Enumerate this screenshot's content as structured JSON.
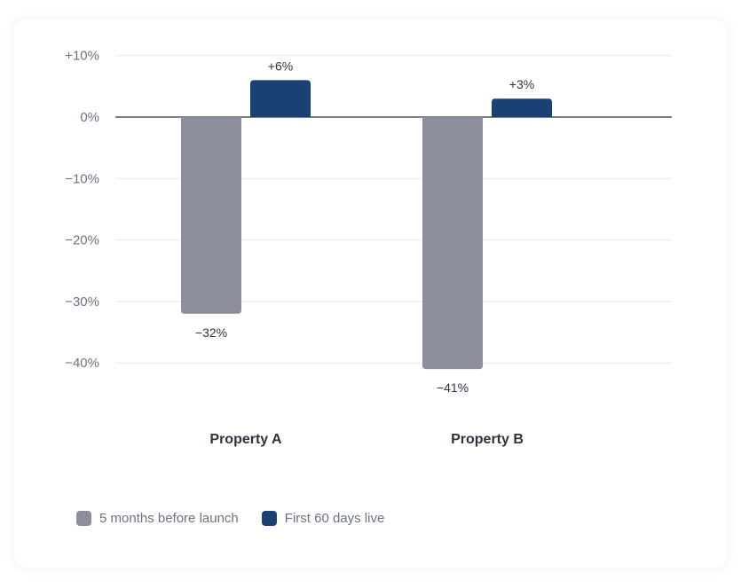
{
  "chart_data": {
    "type": "bar",
    "categories": [
      "Property A",
      "Property B"
    ],
    "series": [
      {
        "name": "5 months before launch",
        "values": [
          -32,
          -41
        ],
        "labels": [
          "−32%",
          "−41%"
        ],
        "color": "#8a8f9b"
      },
      {
        "name": "First 60 days live",
        "values": [
          6,
          3
        ],
        "labels": [
          "+6%",
          "+3%"
        ],
        "color": "#1b4174"
      }
    ],
    "ylim": [
      -40,
      10
    ],
    "yticks": [
      10,
      0,
      -10,
      -20,
      -30,
      -40
    ],
    "ytick_labels": [
      "+10%",
      "0%",
      "−10%",
      "−20%",
      "−30%",
      "−40%"
    ],
    "grid": true,
    "legend_position": "bottom-left"
  }
}
